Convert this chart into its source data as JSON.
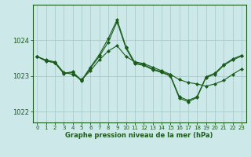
{
  "title": "Graphe pression niveau de la mer (hPa)",
  "background_color": "#cce8e8",
  "grid_color": "#aacccc",
  "line_color": "#1a5c1a",
  "ylim": [
    1021.7,
    1025.0
  ],
  "xlim": [
    -0.5,
    23.5
  ],
  "yticks": [
    1022,
    1023,
    1024
  ],
  "xticks": [
    0,
    1,
    2,
    3,
    4,
    5,
    6,
    7,
    8,
    9,
    10,
    11,
    12,
    13,
    14,
    15,
    16,
    17,
    18,
    19,
    20,
    21,
    22,
    23
  ],
  "series": [
    [
      1023.55,
      1023.45,
      1023.4,
      1023.1,
      1023.05,
      1022.9,
      1023.15,
      1023.45,
      1023.7,
      1023.85,
      1023.55,
      1023.4,
      1023.35,
      1023.25,
      1023.15,
      1023.05,
      1022.9,
      1022.82,
      1022.78,
      1022.72,
      1022.78,
      1022.88,
      1023.05,
      1023.2
    ],
    [
      1023.55,
      1023.42,
      1023.38,
      1023.08,
      1023.12,
      1022.88,
      1023.25,
      1023.6,
      1024.05,
      1024.58,
      1023.82,
      1023.38,
      1023.32,
      1023.2,
      1023.12,
      1023.02,
      1022.42,
      1022.32,
      1022.42,
      1022.98,
      1023.08,
      1023.32,
      1023.48,
      1023.58
    ],
    [
      1023.55,
      1023.43,
      1023.37,
      1023.07,
      1023.1,
      1022.86,
      1023.22,
      1023.55,
      1023.95,
      1024.52,
      1023.78,
      1023.34,
      1023.3,
      1023.18,
      1023.1,
      1023.0,
      1022.38,
      1022.28,
      1022.4,
      1022.96,
      1023.05,
      1023.3,
      1023.45,
      1023.56
    ]
  ]
}
